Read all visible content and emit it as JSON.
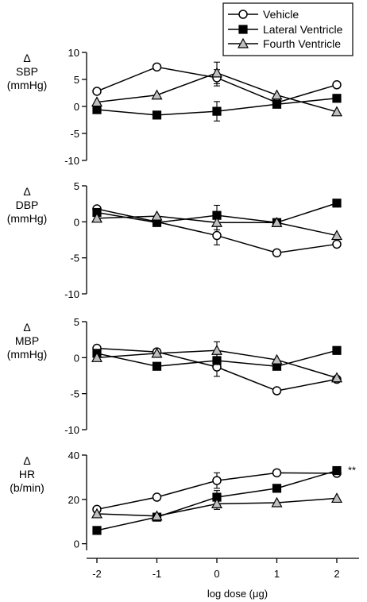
{
  "chart_data": {
    "type": "line",
    "x": [
      -2,
      -1,
      0,
      1,
      2
    ],
    "xticks": [
      -2,
      -1,
      0,
      1,
      2
    ],
    "xlim": [
      -2.3,
      2.3
    ],
    "xlabel": "log dose (μg)",
    "legend": {
      "placement": "top-right",
      "entries": [
        {
          "name": "Vehicle",
          "marker": "circle",
          "fill": "#ffffff"
        },
        {
          "name": "Lateral Ventricle",
          "marker": "square",
          "fill": "#000000"
        },
        {
          "name": "Fourth Ventricle",
          "marker": "triangle",
          "fill": "#bfbfbf"
        }
      ]
    },
    "panels": [
      {
        "id": "sbp",
        "delta": "Δ",
        "ylabel_lines": [
          "SBP",
          "(mmHg)"
        ],
        "ylim": [
          -10,
          10
        ],
        "yticks": [
          "10",
          "5",
          "0",
          "-5",
          "-10"
        ],
        "yticks_values": [
          10,
          5,
          0,
          -5,
          -10
        ],
        "series": [
          {
            "name": "Vehicle",
            "values": [
              2.8,
              7.3,
              5.3,
              0.7,
              4.0
            ],
            "err": [
              null,
              null,
              1.5,
              null,
              null
            ]
          },
          {
            "name": "Lateral Ventricle",
            "values": [
              -0.6,
              -1.6,
              -0.9,
              0.4,
              1.5
            ],
            "err": [
              null,
              null,
              1.8,
              null,
              null
            ]
          },
          {
            "name": "Fourth Ventricle",
            "values": [
              0.8,
              2.1,
              6.2,
              2.1,
              -1.0
            ],
            "err": [
              null,
              null,
              2.0,
              null,
              null
            ]
          }
        ]
      },
      {
        "id": "dbp",
        "delta": "Δ",
        "ylabel_lines": [
          "DBP",
          "(mmHg)"
        ],
        "ylim": [
          -10,
          5
        ],
        "yticks": [
          "5",
          "0",
          "-5",
          "-10"
        ],
        "yticks_values": [
          5,
          0,
          -5,
          -10
        ],
        "series": [
          {
            "name": "Vehicle",
            "values": [
              1.8,
              0.0,
              -1.9,
              -4.3,
              -3.1
            ],
            "err": [
              null,
              null,
              1.3,
              null,
              null
            ]
          },
          {
            "name": "Lateral Ventricle",
            "values": [
              1.3,
              -0.1,
              0.9,
              -0.1,
              2.6
            ],
            "err": [
              null,
              null,
              1.4,
              null,
              null
            ]
          },
          {
            "name": "Fourth Ventricle",
            "values": [
              0.5,
              0.8,
              -0.1,
              -0.1,
              -1.9
            ],
            "err": [
              null,
              null,
              1.0,
              null,
              null
            ]
          }
        ]
      },
      {
        "id": "mbp",
        "delta": "Δ",
        "ylabel_lines": [
          "MBP",
          "(mmHg)"
        ],
        "ylim": [
          -10,
          5
        ],
        "yticks": [
          "5",
          "0",
          "-5",
          "-10"
        ],
        "yticks_values": [
          5,
          0,
          -5,
          -10
        ],
        "series": [
          {
            "name": "Vehicle",
            "values": [
              1.3,
              0.8,
              -1.3,
              -4.6,
              -3.0
            ],
            "err": [
              null,
              null,
              1.3,
              null,
              null
            ]
          },
          {
            "name": "Lateral Ventricle",
            "values": [
              0.6,
              -1.2,
              -0.4,
              -1.2,
              1.0
            ],
            "err": [
              null,
              null,
              1.3,
              null,
              null
            ]
          },
          {
            "name": "Fourth Ventricle",
            "values": [
              0.0,
              0.6,
              1.0,
              -0.3,
              -2.8
            ],
            "err": [
              null,
              null,
              1.2,
              null,
              null
            ]
          }
        ]
      },
      {
        "id": "hr",
        "delta": "Δ",
        "ylabel_lines": [
          "HR",
          "(b/min)"
        ],
        "ylim": [
          -3,
          40
        ],
        "yticks": [
          "40",
          "20",
          "0"
        ],
        "yticks_values": [
          40,
          20,
          0
        ],
        "annotation": "**",
        "series": [
          {
            "name": "Vehicle",
            "values": [
              15.5,
              21.0,
              28.5,
              32.0,
              31.8
            ],
            "err": [
              null,
              null,
              3.5,
              null,
              null
            ]
          },
          {
            "name": "Lateral Ventricle",
            "values": [
              6.0,
              12.0,
              21.0,
              25.0,
              33.0
            ],
            "err": [
              null,
              null,
              3.0,
              null,
              null
            ]
          },
          {
            "name": "Fourth Ventricle",
            "values": [
              13.5,
              12.5,
              18.0,
              18.5,
              20.5
            ],
            "err": [
              null,
              null,
              2.5,
              null,
              null
            ]
          }
        ]
      }
    ]
  }
}
